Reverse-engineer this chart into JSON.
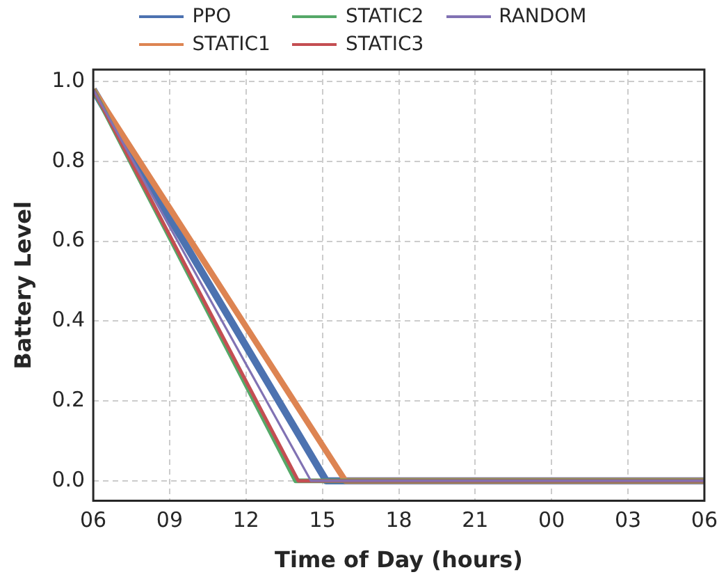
{
  "chart_data": {
    "type": "line",
    "xlabel": "Time of Day (hours)",
    "ylabel": "Battery Level",
    "xlim": [
      6,
      30
    ],
    "xticks": [
      {
        "value": 6,
        "label": "06"
      },
      {
        "value": 9,
        "label": "09"
      },
      {
        "value": 12,
        "label": "12"
      },
      {
        "value": 15,
        "label": "15"
      },
      {
        "value": 18,
        "label": "18"
      },
      {
        "value": 21,
        "label": "21"
      },
      {
        "value": 24,
        "label": "00"
      },
      {
        "value": 27,
        "label": "03"
      },
      {
        "value": 30,
        "label": "06"
      }
    ],
    "ylim": [
      -0.05,
      1.03
    ],
    "yticks": [
      {
        "value": 0,
        "label": "0.0"
      },
      {
        "value": 0.2,
        "label": "0.2"
      },
      {
        "value": 0.4,
        "label": "0.4"
      },
      {
        "value": 0.6,
        "label": "0.6"
      },
      {
        "value": 0.8,
        "label": "0.8"
      },
      {
        "value": 1,
        "label": "1.0"
      }
    ],
    "grid": true,
    "legend": "top",
    "marker": "none",
    "line_style": "solid",
    "series": [
      {
        "name": "PPO",
        "color": "#4c72b0",
        "x": [
          6,
          15.15,
          30
        ],
        "values": [
          0.98,
          0,
          0
        ]
      },
      {
        "name": "STATIC1",
        "color": "#dd8452",
        "x": [
          6,
          15.9,
          30
        ],
        "values": [
          0.98,
          0,
          0
        ]
      },
      {
        "name": "STATIC2",
        "color": "#55a868",
        "x": [
          6,
          13.95,
          30
        ],
        "values": [
          0.98,
          0,
          0
        ]
      },
      {
        "name": "STATIC3",
        "color": "#c44e52",
        "x": [
          6,
          14.05,
          30
        ],
        "values": [
          0.98,
          0,
          0
        ]
      },
      {
        "name": "RANDOM",
        "color": "#8172b3",
        "x": [
          6,
          14.55,
          30
        ],
        "values": [
          0.98,
          0,
          0
        ]
      }
    ]
  }
}
